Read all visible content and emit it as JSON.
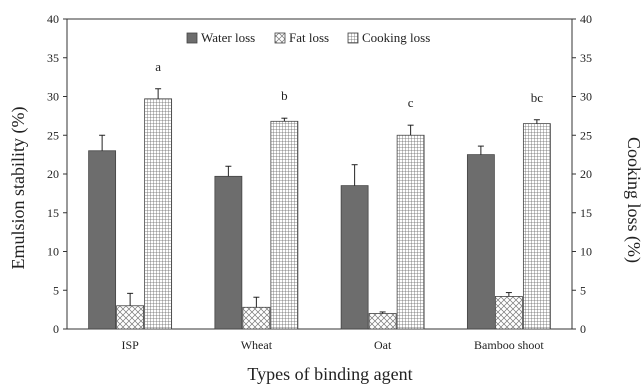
{
  "chart_data": {
    "type": "bar",
    "xlabel": "Types of binding agent",
    "ylabel": "Emulsion stability (%)",
    "y2label": "Cooking loss (%)",
    "ylim": [
      0,
      40
    ],
    "y2lim": [
      0,
      40
    ],
    "yticks": [
      "0",
      "5",
      "10",
      "15",
      "20",
      "25",
      "30",
      "35",
      "40"
    ],
    "categories": [
      "ISP",
      "Wheat",
      "Oat",
      "Bamboo shoot"
    ],
    "series": [
      {
        "name": "Water loss",
        "values": [
          23.0,
          19.7,
          18.5,
          22.5
        ],
        "errors": [
          2.0,
          1.3,
          2.7,
          1.1
        ],
        "fill": "solid",
        "color": "#6d6d6d"
      },
      {
        "name": "Fat loss",
        "values": [
          3.0,
          2.8,
          2.0,
          4.2
        ],
        "errors": [
          1.6,
          1.3,
          0.2,
          0.5
        ],
        "fill": "crosshatch",
        "color": "#ffffff"
      },
      {
        "name": "Cooking loss",
        "values": [
          29.7,
          26.8,
          25.0,
          26.5
        ],
        "errors": [
          1.3,
          0.4,
          1.3,
          0.5
        ],
        "fill": "grid",
        "color": "#ffffff"
      }
    ],
    "annotations": [
      "a",
      "b",
      "c",
      "bc"
    ],
    "legend_position": "top-center",
    "grid": false
  }
}
